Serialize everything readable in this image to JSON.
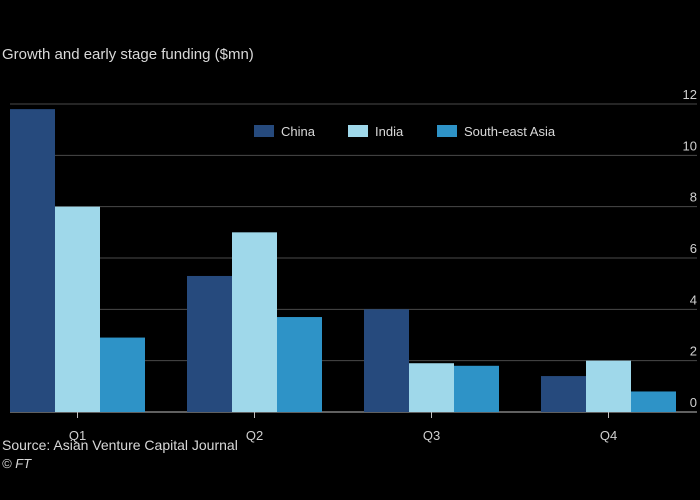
{
  "chart_data": {
    "type": "bar",
    "title": "Growth and early stage funding ($mn)",
    "categories": [
      "Q1",
      "Q2",
      "Q3",
      "Q4"
    ],
    "series": [
      {
        "name": "China",
        "values": [
          11.8,
          5.3,
          4.0,
          1.4
        ],
        "color": "#264a7d"
      },
      {
        "name": "India",
        "values": [
          8.0,
          7.0,
          1.9,
          2.0
        ],
        "color": "#9fd8ea"
      },
      {
        "name": "South-east Asia",
        "values": [
          2.9,
          3.7,
          1.8,
          0.8
        ],
        "color": "#2e93c7"
      }
    ],
    "ylim": [
      0,
      12
    ],
    "yticks": [
      0,
      2,
      4,
      6,
      8,
      10,
      12
    ],
    "grid": true,
    "legend": "top-center",
    "xlabel": "",
    "ylabel": ""
  },
  "source": "Source: Asian Venture Capital Journal",
  "credit": "© FT"
}
